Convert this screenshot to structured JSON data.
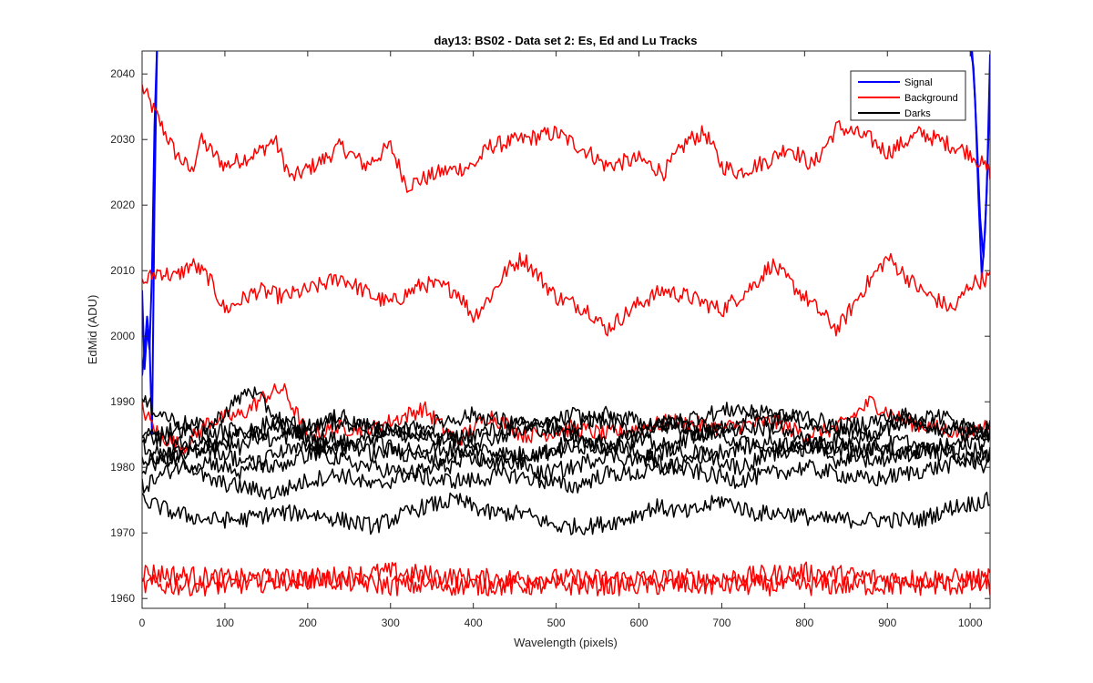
{
  "chart_data": {
    "type": "line",
    "title": "day13: BS02 - Data set 2: Es, Ed and Lu Tracks",
    "xlabel": "Wavelength (pixels)",
    "ylabel": "EdMid (ADU)",
    "xlim": [
      0,
      1024
    ],
    "ylim": [
      1958.5,
      2043.5
    ],
    "xticks": [
      0,
      100,
      200,
      300,
      400,
      500,
      600,
      700,
      800,
      900,
      1000
    ],
    "yticks": [
      1960,
      1970,
      1980,
      1990,
      2000,
      2010,
      2020,
      2030,
      2040
    ],
    "grid": false,
    "legend_position": "top-right",
    "legend": [
      {
        "label": "Signal",
        "color": "#0000ff"
      },
      {
        "label": "Background",
        "color": "#ff0000"
      },
      {
        "label": "Darks",
        "color": "#000000"
      }
    ],
    "series": [
      {
        "name": "Signal",
        "color": "#0000ff",
        "x": [
          0,
          3,
          6,
          9,
          12,
          15,
          18,
          24,
          1000,
          1004,
          1008,
          1012,
          1016,
          1020,
          1024
        ],
        "y": [
          2007,
          1995,
          2001,
          1998,
          2010,
          2032,
          2044,
          2044,
          2044,
          2041,
          2030,
          2018,
          2012,
          2022,
          2043
        ]
      },
      {
        "name": "Signal",
        "color": "#0000ff",
        "x": [
          0,
          3,
          6,
          9,
          12,
          15,
          18,
          1002,
          1006,
          1010,
          1014,
          1018,
          1022,
          1024
        ],
        "y": [
          1994,
          1998,
          2003,
          1999,
          1985,
          2020,
          2044,
          2044,
          2036,
          2021,
          2009,
          2016,
          2030,
          2040
        ]
      },
      {
        "name": "Background",
        "color": "#ff0000",
        "x": [
          0,
          20,
          40,
          60,
          70,
          100,
          140,
          160,
          180,
          220,
          240,
          270,
          300,
          320,
          360,
          400,
          420,
          460,
          500,
          540,
          560,
          600,
          630,
          660,
          680,
          700,
          720,
          760,
          780,
          810,
          840,
          880,
          900,
          940,
          980,
          1000,
          1024
        ],
        "y": [
          2038,
          2033,
          2028,
          2025,
          2030,
          2026,
          2028,
          2030,
          2024,
          2027,
          2029,
          2026,
          2029,
          2023,
          2025,
          2026,
          2029,
          2030,
          2031,
          2028,
          2026,
          2027,
          2025,
          2030,
          2031,
          2026,
          2025,
          2027,
          2029,
          2026,
          2032,
          2030,
          2028,
          2031,
          2029,
          2028,
          2025
        ]
      },
      {
        "name": "Background",
        "color": "#ff0000",
        "x": [
          0,
          20,
          40,
          60,
          80,
          100,
          140,
          170,
          200,
          240,
          280,
          300,
          340,
          380,
          400,
          420,
          440,
          460,
          500,
          540,
          560,
          600,
          630,
          660,
          700,
          740,
          760,
          800,
          840,
          870,
          900,
          940,
          980,
          1000,
          1024
        ],
        "y": [
          2008,
          2010,
          2009,
          2011,
          2009,
          2004,
          2007,
          2006,
          2007,
          2009,
          2006,
          2005,
          2008,
          2007,
          2003,
          2006,
          2010,
          2012,
          2006,
          2004,
          2001,
          2005,
          2007,
          2006,
          2004,
          2008,
          2011,
          2006,
          2001,
          2007,
          2012,
          2007,
          2004,
          2008,
          2009
        ]
      },
      {
        "name": "Background",
        "color": "#ff0000",
        "x": [
          0,
          20,
          50,
          80,
          120,
          150,
          170,
          200,
          240,
          280,
          300,
          340,
          380,
          400,
          420,
          460,
          480,
          520,
          560,
          600,
          640,
          700,
          760,
          800,
          840,
          880,
          920,
          960,
          1000,
          1024
        ],
        "y": [
          1989,
          1985,
          1983,
          1987,
          1988,
          1991,
          1992,
          1985,
          1986,
          1986,
          1987,
          1989,
          1984,
          1986,
          1988,
          1985,
          1985,
          1986,
          1985,
          1986,
          1987,
          1986,
          1987,
          1985,
          1986,
          1990,
          1987,
          1986,
          1985,
          1987
        ]
      },
      {
        "name": "Background",
        "color": "#ff0000",
        "x": [
          0,
          100,
          200,
          300,
          400,
          500,
          600,
          700,
          800,
          900,
          1000,
          1024
        ],
        "y": [
          1964,
          1963,
          1963,
          1964,
          1963,
          1963,
          1963,
          1963,
          1964,
          1963,
          1963,
          1963
        ]
      },
      {
        "name": "Background",
        "color": "#ff0000",
        "x": [
          0,
          100,
          200,
          300,
          400,
          500,
          600,
          700,
          800,
          900,
          1000,
          1024
        ],
        "y": [
          1962,
          1962,
          1963,
          1962,
          1962,
          1962,
          1962,
          1962,
          1962,
          1962,
          1962,
          1962
        ]
      },
      {
        "name": "Darks",
        "color": "#000000",
        "x": [
          0,
          40,
          80,
          120,
          160,
          200,
          240,
          280,
          300,
          340,
          380,
          420,
          460,
          500,
          540,
          580,
          620,
          660,
          700,
          740,
          780,
          820,
          860,
          900,
          940,
          980,
          1024
        ],
        "y": [
          1975,
          1973,
          1972,
          1972,
          1973,
          1973,
          1972,
          1971,
          1972,
          1974,
          1975,
          1973,
          1973,
          1971,
          1971,
          1972,
          1974,
          1973,
          1975,
          1973,
          1973,
          1972,
          1972,
          1972,
          1972,
          1974,
          1975
        ]
      },
      {
        "name": "Darks",
        "color": "#000000",
        "x": [
          0,
          40,
          80,
          120,
          160,
          200,
          240,
          280,
          320,
          360,
          400,
          440,
          480,
          520,
          560,
          600,
          640,
          680,
          720,
          760,
          800,
          840,
          880,
          920,
          960,
          1000,
          1024
        ],
        "y": [
          1981,
          1982,
          1978,
          1977,
          1976,
          1978,
          1979,
          1977,
          1979,
          1978,
          1978,
          1979,
          1978,
          1977,
          1979,
          1979,
          1980,
          1979,
          1978,
          1979,
          1980,
          1979,
          1978,
          1979,
          1980,
          1981,
          1982
        ]
      },
      {
        "name": "Darks",
        "color": "#000000",
        "x": [
          0,
          40,
          80,
          120,
          160,
          200,
          240,
          280,
          320,
          360,
          400,
          440,
          480,
          520,
          560,
          600,
          640,
          680,
          720,
          760,
          800,
          840,
          880,
          920,
          960,
          1000,
          1024
        ],
        "y": [
          1983,
          1981,
          1984,
          1983,
          1986,
          1985,
          1984,
          1982,
          1983,
          1981,
          1983,
          1982,
          1982,
          1984,
          1983,
          1984,
          1983,
          1986,
          1984,
          1982,
          1983,
          1981,
          1983,
          1984,
          1982,
          1983,
          1982
        ]
      },
      {
        "name": "Darks",
        "color": "#000000",
        "x": [
          0,
          40,
          80,
          130,
          160,
          200,
          240,
          280,
          320,
          360,
          400,
          440,
          480,
          520,
          560,
          600,
          640,
          680,
          720,
          760,
          800,
          840,
          880,
          920,
          960,
          1000,
          1024
        ],
        "y": [
          1990,
          1987,
          1986,
          1992,
          1988,
          1984,
          1983,
          1985,
          1986,
          1985,
          1984,
          1985,
          1986,
          1985,
          1983,
          1986,
          1987,
          1985,
          1986,
          1986,
          1984,
          1983,
          1985,
          1987,
          1986,
          1986,
          1985
        ]
      },
      {
        "name": "Darks",
        "color": "#000000",
        "x": [
          0,
          40,
          80,
          120,
          160,
          200,
          240,
          280,
          320,
          360,
          400,
          440,
          480,
          520,
          560,
          600,
          640,
          680,
          720,
          760,
          800,
          840,
          880,
          920,
          960,
          1000,
          1024
        ],
        "y": [
          1984,
          1986,
          1985,
          1986,
          1984,
          1986,
          1987,
          1986,
          1985,
          1987,
          1988,
          1987,
          1986,
          1988,
          1987,
          1985,
          1987,
          1988,
          1989,
          1987,
          1988,
          1986,
          1987,
          1988,
          1986,
          1985,
          1986
        ]
      },
      {
        "name": "Darks",
        "color": "#000000",
        "x": [
          0,
          40,
          80,
          120,
          160,
          200,
          240,
          280,
          320,
          360,
          400,
          440,
          480,
          520,
          560,
          600,
          640,
          680,
          720,
          760,
          800,
          840,
          880,
          920,
          960,
          1000,
          1024
        ],
        "y": [
          1980,
          1982,
          1983,
          1981,
          1980,
          1982,
          1983,
          1984,
          1982,
          1983,
          1982,
          1980,
          1982,
          1983,
          1984,
          1982,
          1980,
          1982,
          1983,
          1984,
          1983,
          1984,
          1983,
          1982,
          1983,
          1984,
          1984
        ]
      },
      {
        "name": "Darks",
        "color": "#000000",
        "x": [
          0,
          40,
          80,
          120,
          160,
          200,
          240,
          280,
          320,
          360,
          400,
          440,
          480,
          520,
          560,
          600,
          640,
          680,
          720,
          760,
          800,
          840,
          880,
          920,
          960,
          1000,
          1024
        ],
        "y": [
          1977,
          1980,
          1981,
          1979,
          1982,
          1983,
          1981,
          1980,
          1979,
          1980,
          1981,
          1982,
          1979,
          1980,
          1982,
          1981,
          1983,
          1982,
          1980,
          1982,
          1984,
          1983,
          1981,
          1982,
          1983,
          1981,
          1980
        ]
      },
      {
        "name": "Darks",
        "color": "#000000",
        "x": [
          0,
          40,
          80,
          120,
          160,
          200,
          240,
          280,
          320,
          360,
          400,
          440,
          480,
          520,
          560,
          600,
          640,
          680,
          720,
          760,
          800,
          840,
          880,
          920,
          960,
          1000,
          1024
        ],
        "y": [
          1985,
          1984,
          1983,
          1985,
          1987,
          1986,
          1988,
          1986,
          1985,
          1984,
          1985,
          1986,
          1987,
          1986,
          1988,
          1987,
          1986,
          1985,
          1987,
          1989,
          1987,
          1986,
          1985,
          1987,
          1988,
          1986,
          1985
        ]
      }
    ]
  }
}
